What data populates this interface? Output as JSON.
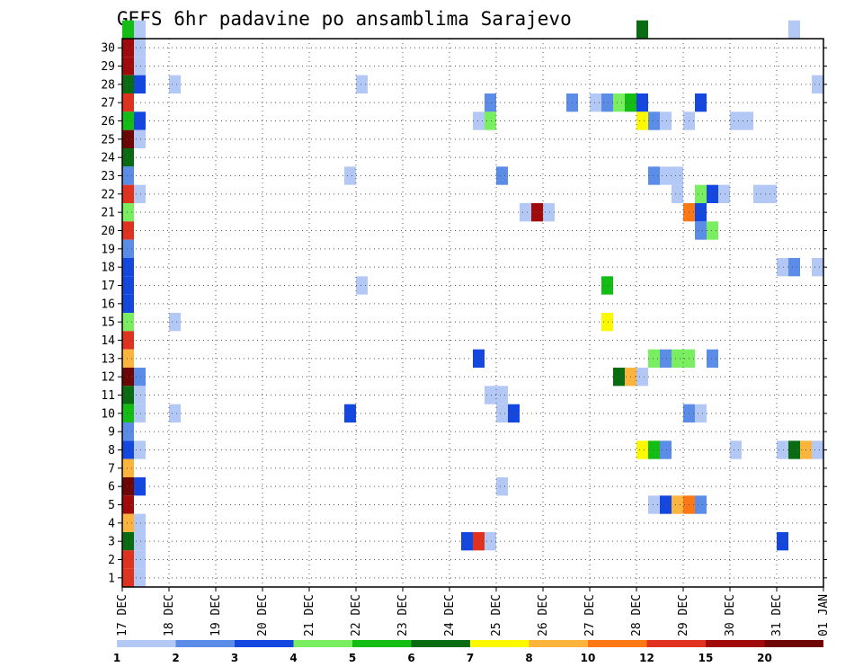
{
  "chart_data": {
    "type": "heatmap",
    "title": "GEFS 6hr padavine po ansamblima Sarajevo",
    "xlabel": "",
    "ylabel": "",
    "x_ticks": [
      "17 DEC",
      "18 DEC",
      "19 DEC",
      "20 DEC",
      "21 DEC",
      "22 DEC",
      "23 DEC",
      "24 DEC",
      "25 DEC",
      "26 DEC",
      "27 DEC",
      "28 DEC",
      "29 DEC",
      "30 DEC",
      "31 DEC",
      "01 JAN"
    ],
    "y_ticks": [
      1,
      2,
      3,
      4,
      5,
      6,
      7,
      8,
      9,
      10,
      11,
      12,
      13,
      14,
      15,
      16,
      17,
      18,
      19,
      20,
      21,
      22,
      23,
      24,
      25,
      26,
      27,
      28,
      29,
      30
    ],
    "x_range_days": [
      0,
      15
    ],
    "y_range": [
      0,
      30
    ],
    "grid": true,
    "colorbar": {
      "labels": [
        "1",
        "2",
        "3",
        "4",
        "5",
        "6",
        "7",
        "8",
        "10",
        "12",
        "15",
        "20"
      ],
      "colors": [
        "#b4c8f5",
        "#5a8ce8",
        "#1446e0",
        "#78ee60",
        "#14bd14",
        "#0a6c12",
        "#fcf800",
        "#fcb43c",
        "#fc7814",
        "#e0321e",
        "#a00a0a",
        "#6e0606"
      ]
    },
    "cells_note": "each cell: [day_offset_from_17_DEC, member, color_class_index]",
    "cells": [
      [
        0,
        30,
        4
      ],
      [
        0,
        29,
        10
      ],
      [
        0,
        28,
        10
      ],
      [
        0,
        27,
        5
      ],
      [
        0,
        26,
        9
      ],
      [
        0,
        25,
        4
      ],
      [
        0,
        24,
        11
      ],
      [
        0,
        23,
        5
      ],
      [
        0,
        22,
        1
      ],
      [
        0,
        21,
        9
      ],
      [
        0,
        20,
        3
      ],
      [
        0,
        19,
        9
      ],
      [
        0,
        18,
        1
      ],
      [
        0,
        17,
        2
      ],
      [
        0,
        16,
        2
      ],
      [
        0,
        15,
        2
      ],
      [
        0,
        14,
        3
      ],
      [
        0,
        13,
        9
      ],
      [
        0,
        12,
        7
      ],
      [
        0,
        11,
        11
      ],
      [
        0,
        10,
        5
      ],
      [
        0,
        9,
        4
      ],
      [
        0,
        8,
        1
      ],
      [
        0,
        7,
        2
      ],
      [
        0,
        6,
        7
      ],
      [
        0,
        5,
        11
      ],
      [
        0,
        4,
        10
      ],
      [
        0,
        3,
        7
      ],
      [
        0,
        2,
        5
      ],
      [
        0,
        1,
        9
      ],
      [
        0,
        0,
        9
      ],
      [
        0.25,
        30,
        0
      ],
      [
        0.25,
        29,
        0
      ],
      [
        0.25,
        28,
        0
      ],
      [
        0.25,
        27,
        2
      ],
      [
        0.25,
        25,
        2
      ],
      [
        0.25,
        24,
        0
      ],
      [
        0.25,
        21,
        0
      ],
      [
        0.25,
        11,
        1
      ],
      [
        0.25,
        10,
        0
      ],
      [
        0.25,
        9,
        0
      ],
      [
        0.25,
        7,
        0
      ],
      [
        0.25,
        5,
        2
      ],
      [
        0.25,
        3,
        0
      ],
      [
        0.25,
        2,
        0
      ],
      [
        0.25,
        1,
        0
      ],
      [
        0.25,
        0,
        0
      ],
      [
        1,
        27,
        0
      ],
      [
        1,
        14,
        0
      ],
      [
        1,
        9,
        0
      ],
      [
        4.75,
        22,
        0
      ],
      [
        4.75,
        9,
        2
      ],
      [
        5,
        27,
        0
      ],
      [
        5,
        16,
        0
      ],
      [
        7.25,
        2,
        2
      ],
      [
        7.5,
        2,
        9
      ],
      [
        7.5,
        12,
        2
      ],
      [
        7.75,
        26,
        1
      ],
      [
        7.75,
        25,
        3
      ],
      [
        7.75,
        10,
        0
      ],
      [
        7.75,
        2,
        0
      ],
      [
        7.5,
        25,
        0
      ],
      [
        8,
        22,
        1
      ],
      [
        8,
        10,
        0
      ],
      [
        8,
        9,
        0
      ],
      [
        8,
        5,
        0
      ],
      [
        8.25,
        9,
        2
      ],
      [
        8.5,
        20,
        0
      ],
      [
        8.75,
        20,
        10
      ],
      [
        9,
        20,
        0
      ],
      [
        9.5,
        26,
        1
      ],
      [
        10,
        26,
        0
      ],
      [
        10.25,
        26,
        1
      ],
      [
        10.5,
        26,
        3
      ],
      [
        10.75,
        26,
        4
      ],
      [
        10.25,
        16,
        4
      ],
      [
        10.25,
        14,
        6
      ],
      [
        10.5,
        11,
        5
      ],
      [
        10.75,
        11,
        7
      ],
      [
        11,
        30,
        5
      ],
      [
        11,
        26,
        2
      ],
      [
        11,
        25,
        6
      ],
      [
        11,
        11,
        0
      ],
      [
        11,
        7,
        6
      ],
      [
        11.25,
        25,
        1
      ],
      [
        11.5,
        25,
        0
      ],
      [
        11.25,
        22,
        1
      ],
      [
        11.5,
        22,
        0
      ],
      [
        11.75,
        22,
        0
      ],
      [
        11.75,
        21,
        0
      ],
      [
        11.25,
        12,
        3
      ],
      [
        11.5,
        12,
        1
      ],
      [
        11.75,
        12,
        3
      ],
      [
        12,
        12,
        3
      ],
      [
        11.25,
        7,
        4
      ],
      [
        11.5,
        7,
        1
      ],
      [
        11.25,
        4,
        0
      ],
      [
        11.5,
        4,
        2
      ],
      [
        11.75,
        4,
        7
      ],
      [
        12,
        4,
        8
      ],
      [
        12.25,
        4,
        1
      ],
      [
        12,
        25,
        0
      ],
      [
        12,
        20,
        8
      ],
      [
        12.25,
        20,
        2
      ],
      [
        12.25,
        26,
        2
      ],
      [
        12.25,
        21,
        3
      ],
      [
        12.5,
        21,
        2
      ],
      [
        12.75,
        21,
        0
      ],
      [
        12.25,
        19,
        1
      ],
      [
        12.5,
        19,
        3
      ],
      [
        12,
        9,
        1
      ],
      [
        12.25,
        9,
        0
      ],
      [
        12.5,
        12,
        1
      ],
      [
        13,
        25,
        0
      ],
      [
        13.25,
        25,
        0
      ],
      [
        13,
        7,
        0
      ],
      [
        13.5,
        21,
        0
      ],
      [
        13.75,
        21,
        0
      ],
      [
        14,
        2,
        2
      ],
      [
        14.25,
        30,
        0
      ],
      [
        14,
        17,
        0
      ],
      [
        14.25,
        17,
        1
      ],
      [
        14.75,
        17,
        0
      ],
      [
        14,
        7,
        0
      ],
      [
        14.25,
        7,
        5
      ],
      [
        14.5,
        7,
        7
      ],
      [
        14.75,
        7,
        0
      ],
      [
        14.75,
        27,
        0
      ]
    ]
  }
}
